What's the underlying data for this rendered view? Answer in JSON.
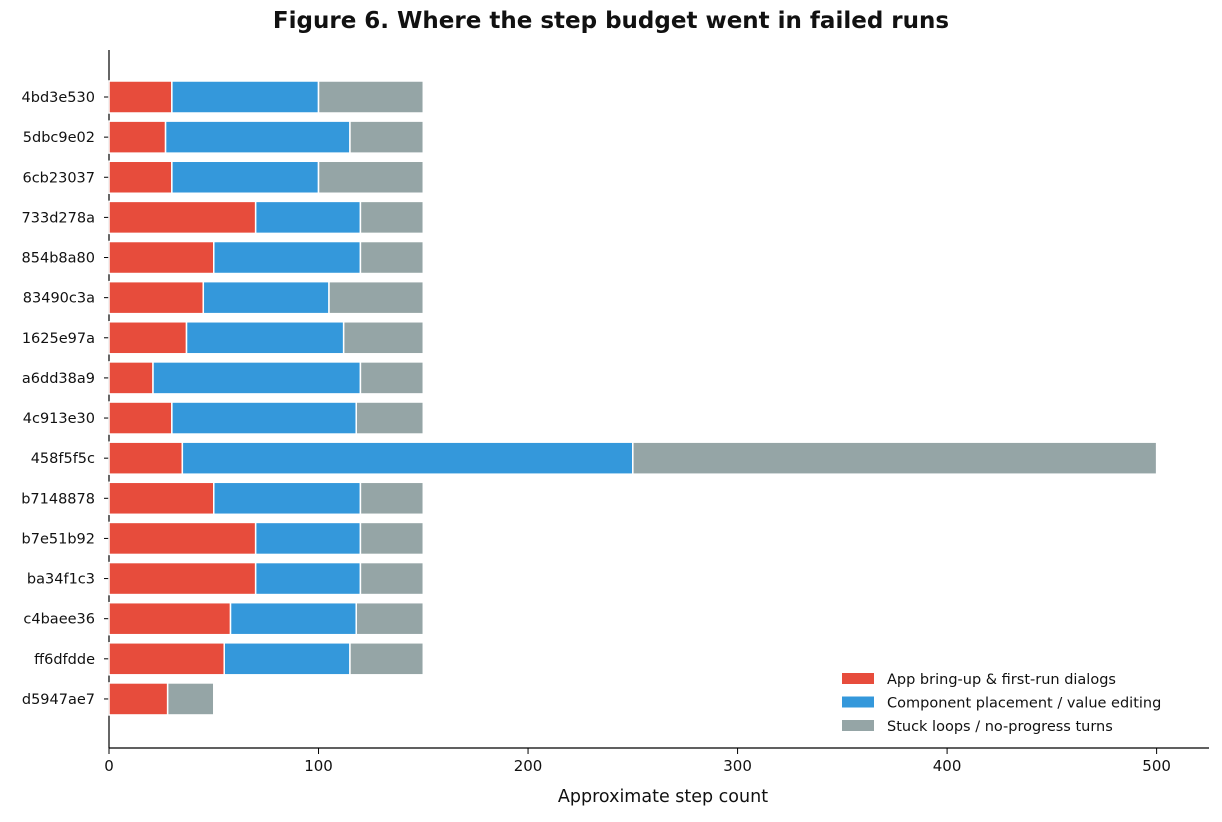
{
  "chart_data": {
    "type": "bar",
    "orientation": "horizontal",
    "stacked": true,
    "title": "Figure 6. Where the step budget went in failed runs",
    "xlabel": "Approximate step count",
    "ylabel": "",
    "xlim": [
      0,
      525
    ],
    "xticks": [
      0,
      100,
      200,
      300,
      400,
      500
    ],
    "grid": false,
    "legend_position": "bottom-right",
    "categories": [
      "4bd3e530",
      "5dbc9e02",
      "6cb23037",
      "733d278a",
      "854b8a80",
      "83490c3a",
      "1625e97a",
      "a6dd38a9",
      "4c913e30",
      "458f5f5c",
      "b7148878",
      "b7e51b92",
      "ba34f1c3",
      "c4baee36",
      "ff6dfdde",
      "d5947ae7"
    ],
    "series": [
      {
        "name": "App bring-up & first-run dialogs",
        "color": "#e74c3c",
        "values": [
          30,
          27,
          30,
          70,
          50,
          45,
          37,
          21,
          30,
          35,
          50,
          70,
          70,
          58,
          55,
          28
        ]
      },
      {
        "name": "Component placement / value editing",
        "color": "#3498db",
        "values": [
          70,
          88,
          70,
          50,
          70,
          60,
          75,
          99,
          88,
          215,
          70,
          50,
          50,
          60,
          60,
          0
        ]
      },
      {
        "name": "Stuck loops / no-progress turns",
        "color": "#95a5a6",
        "values": [
          50,
          35,
          50,
          30,
          30,
          45,
          38,
          30,
          32,
          250,
          30,
          30,
          30,
          32,
          35,
          22
        ]
      }
    ]
  }
}
